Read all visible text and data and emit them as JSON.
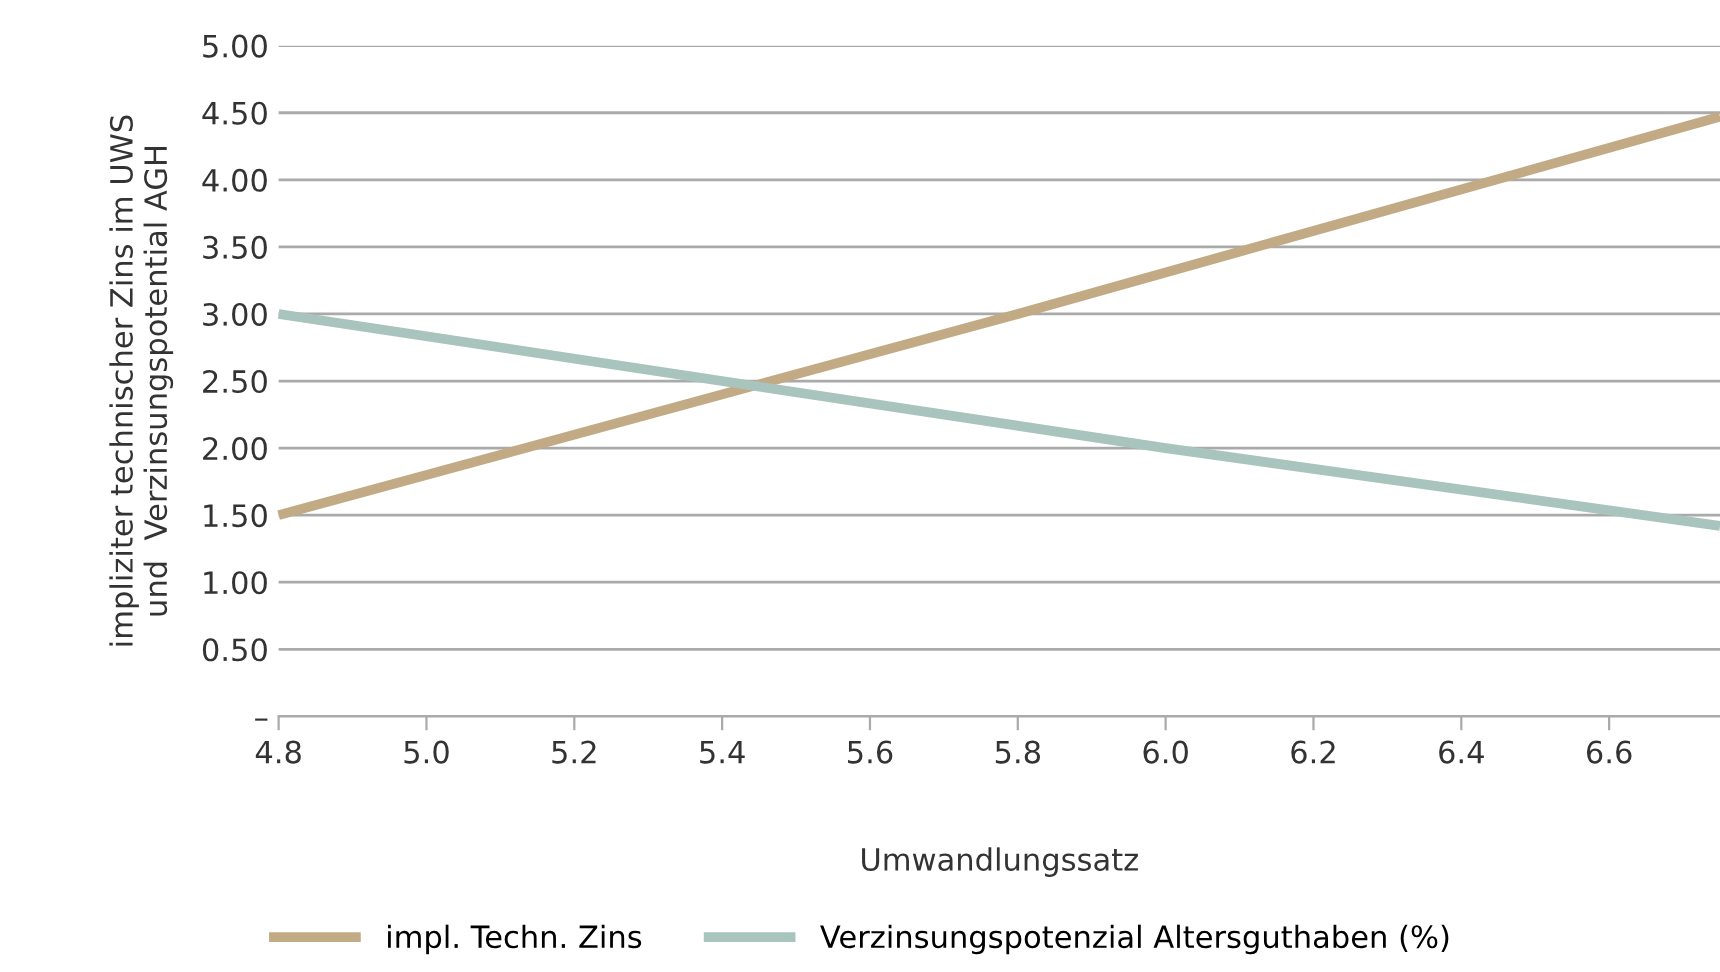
{
  "chart_data": {
    "type": "line",
    "xlabel": "Umwandlungssatz",
    "ylabel": "impliziter technischer Zins im UWS\nund  Verzinsungspotential AGH",
    "series": [
      {
        "name": "impl. Techn. Zins",
        "color": "#c2aa85",
        "x": [
          4.8,
          5.8,
          6.75
        ],
        "values": [
          1.5,
          3.0,
          4.47
        ]
      },
      {
        "name": "Verzinsungspotenzial Altersguthaben (%)",
        "color": "#a8c4bd",
        "x": [
          4.8,
          6.0,
          6.75
        ],
        "values": [
          3.0,
          2.0,
          1.42
        ]
      }
    ],
    "xlim": [
      4.8,
      6.75
    ],
    "xticks": [
      4.8,
      {
        "value": 5,
        "label": "5.0"
      },
      5.2,
      5.4,
      5.6,
      5.8,
      {
        "value": 6,
        "label": "6.0"
      },
      6.2,
      6.4,
      6.6
    ],
    "ylim": [
      0,
      5
    ],
    "yticks": [
      {
        "value": 0,
        "label": "–"
      },
      {
        "value": 0.5,
        "label": "0.50"
      },
      {
        "value": 1,
        "label": "1.00"
      },
      {
        "value": 1.5,
        "label": "1.50"
      },
      {
        "value": 2,
        "label": "2.00"
      },
      {
        "value": 2.5,
        "label": "2.50"
      },
      {
        "value": 3,
        "label": "3.00"
      },
      {
        "value": 3.5,
        "label": "3.50"
      },
      {
        "value": 4,
        "label": "4.00"
      },
      {
        "value": 4.5,
        "label": "4.50"
      },
      {
        "value": 5,
        "label": "5.00"
      }
    ],
    "grid": "y",
    "legend": "bottom",
    "marker": "none",
    "line_style": "solid"
  }
}
